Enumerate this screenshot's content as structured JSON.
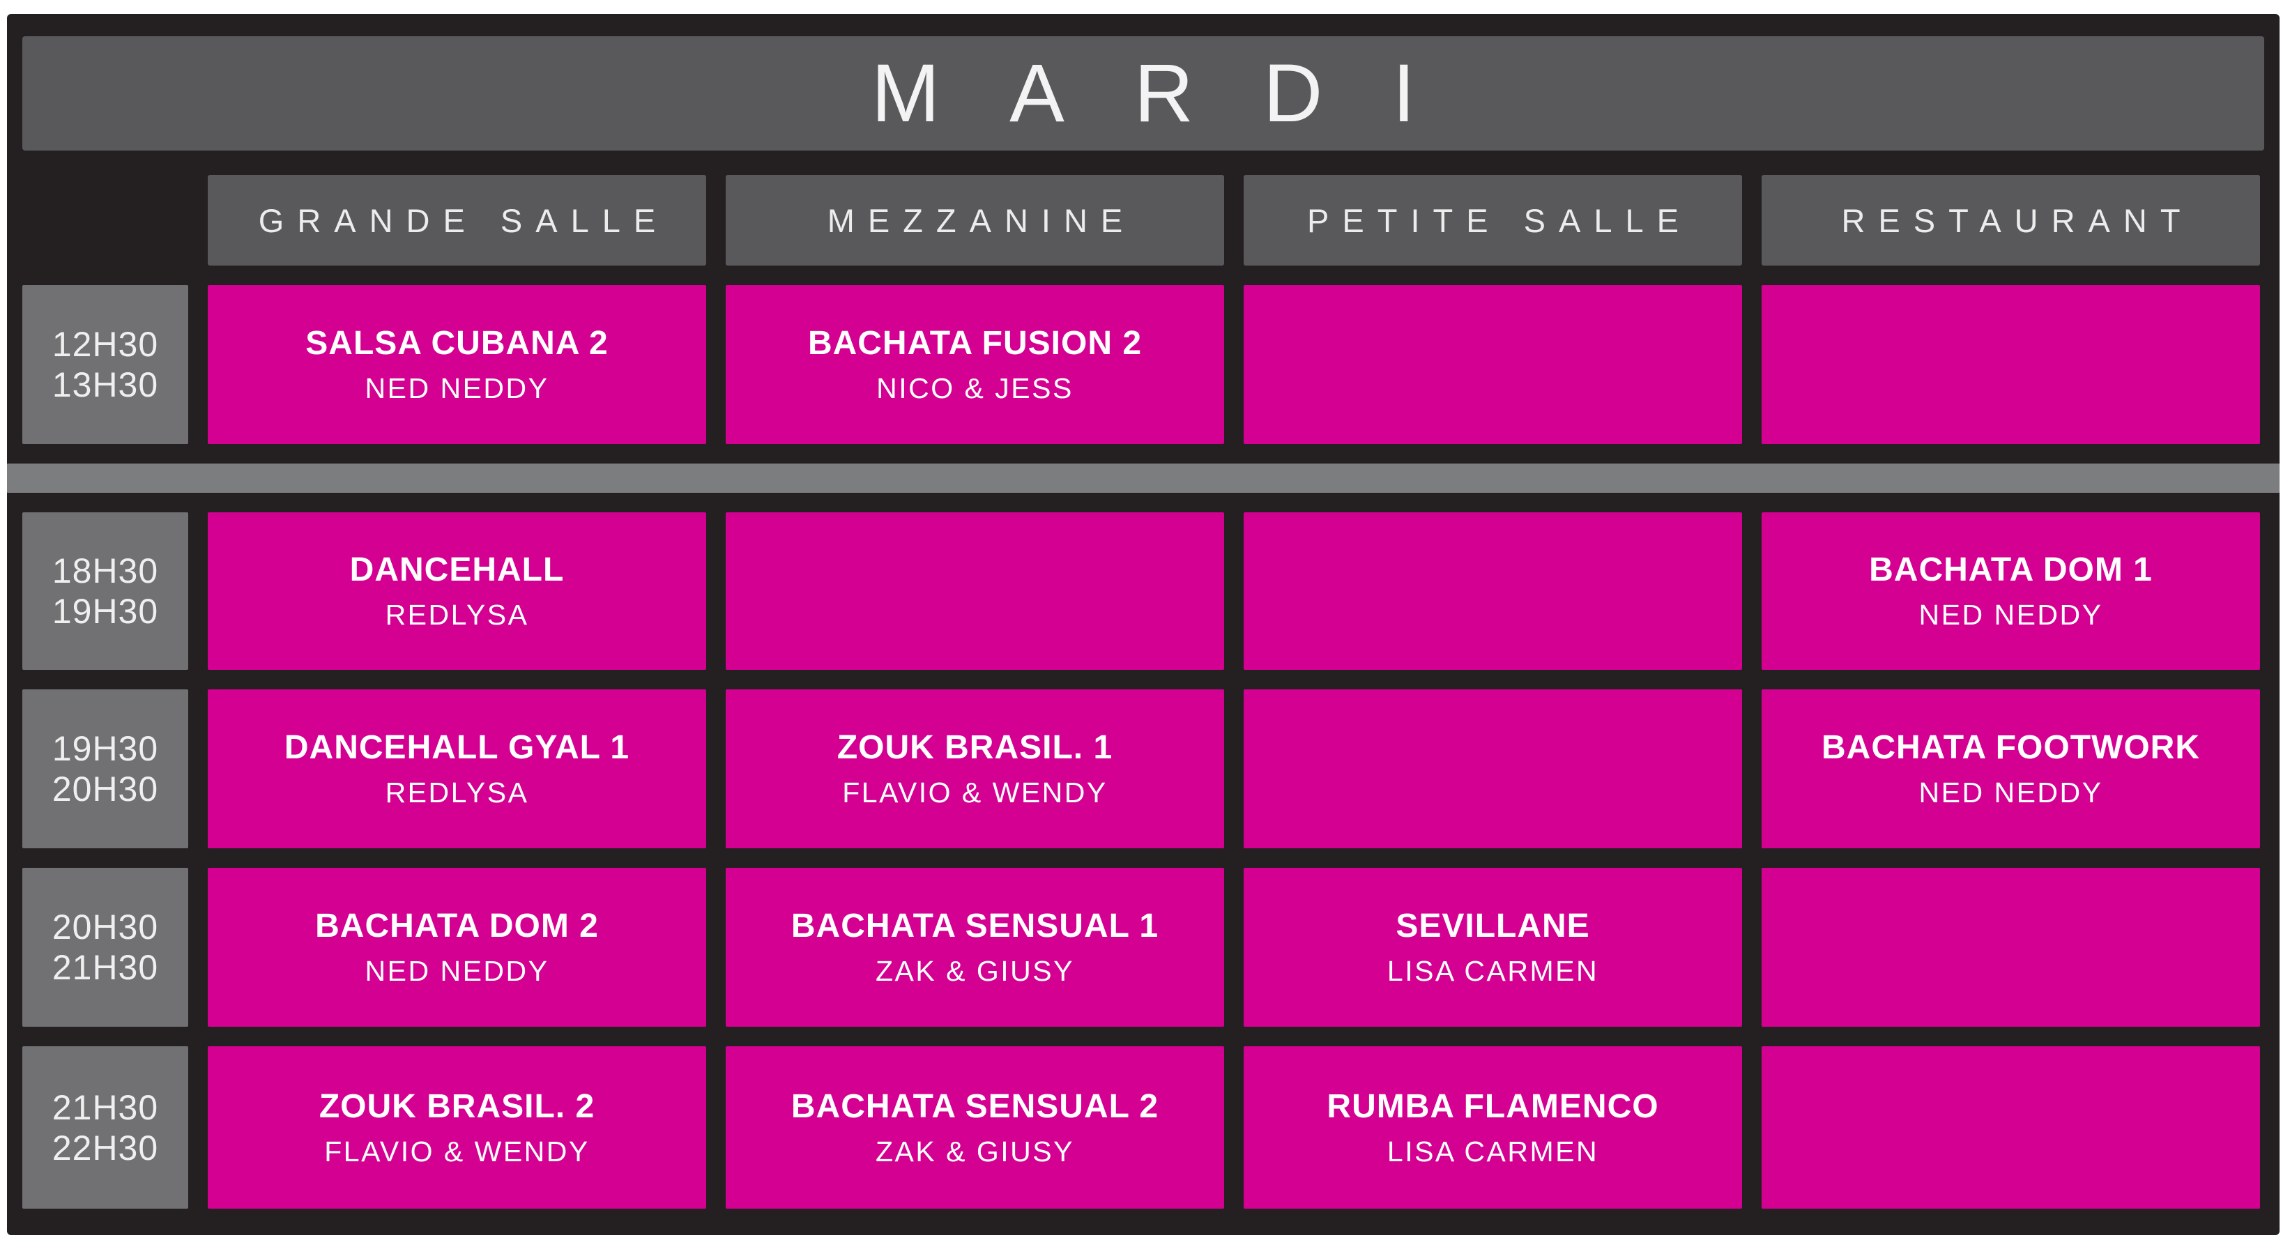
{
  "day_title": "MARDI",
  "columns": [
    {
      "label": "GRANDE SALLE"
    },
    {
      "label": "MEZZANINE"
    },
    {
      "label": "PETITE SALLE"
    },
    {
      "label": "RESTAURANT"
    }
  ],
  "rows": [
    {
      "time_start": "12H30",
      "time_end": "13H30",
      "cells": [
        {
          "title": "SALSA CUBANA 2",
          "instructor": "NED NEDDY"
        },
        {
          "title": "BACHATA FUSION 2",
          "instructor": "NICO & JESS"
        },
        {
          "title": "",
          "instructor": ""
        },
        {
          "title": "",
          "instructor": ""
        }
      ]
    },
    {
      "time_start": "18H30",
      "time_end": "19H30",
      "cells": [
        {
          "title": "DANCEHALL",
          "instructor": "REDLYSA"
        },
        {
          "title": "",
          "instructor": ""
        },
        {
          "title": "",
          "instructor": ""
        },
        {
          "title": "BACHATA DOM 1",
          "instructor": "NED NEDDY"
        }
      ]
    },
    {
      "time_start": "19H30",
      "time_end": "20H30",
      "cells": [
        {
          "title": "DANCEHALL GYAL 1",
          "instructor": "REDLYSA"
        },
        {
          "title": "ZOUK BRASIL. 1",
          "instructor": "FLAVIO & WENDY"
        },
        {
          "title": "",
          "instructor": ""
        },
        {
          "title": "BACHATA FOOTWORK",
          "instructor": "NED NEDDY"
        }
      ]
    },
    {
      "time_start": "20H30",
      "time_end": "21H30",
      "cells": [
        {
          "title": "BACHATA DOM 2",
          "instructor": "NED NEDDY"
        },
        {
          "title": "BACHATA SENSUAL 1",
          "instructor": "ZAK & GIUSY"
        },
        {
          "title": "SEVILLANE",
          "instructor": "LISA CARMEN"
        },
        {
          "title": "",
          "instructor": ""
        }
      ]
    },
    {
      "time_start": "21H30",
      "time_end": "22H30",
      "cells": [
        {
          "title": "ZOUK BRASIL. 2",
          "instructor": "FLAVIO & WENDY"
        },
        {
          "title": "BACHATA SENSUAL 2",
          "instructor": "ZAK & GIUSY"
        },
        {
          "title": "RUMBA FLAMENCO",
          "instructor": "LISA CARMEN"
        },
        {
          "title": "",
          "instructor": ""
        }
      ]
    }
  ],
  "colors": {
    "frame_black": "#241f20",
    "header_gray": "#59595c",
    "time_gray": "#717174",
    "separator_gray": "#7c7d7f",
    "class_pink": "#d40092",
    "text_white": "#ffffff"
  }
}
